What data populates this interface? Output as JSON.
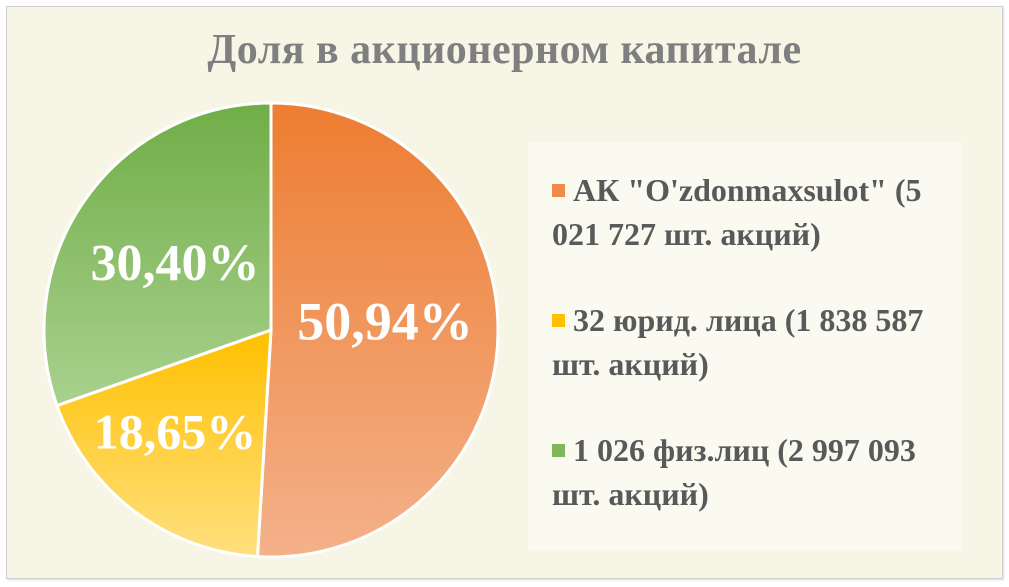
{
  "chart_data": {
    "type": "pie",
    "title": "Доля в акционерном капитале",
    "slices": [
      {
        "label": "АК \"O'zdonmaxsulot\" (5 021 727 шт. акций)",
        "value": 50.94,
        "value_label": "50,94%",
        "color": "#ef8a4a"
      },
      {
        "label": "32 юрид. лица (1 838 587 шт. акций)",
        "value": 18.65,
        "value_label": "18,65%",
        "color": "#ffc000"
      },
      {
        "label": "1 026 физ.лиц (2 997 093 шт. акций)",
        "value": 30.4,
        "value_label": "30,40%",
        "color": "#7fb85a"
      }
    ],
    "legend_position": "right"
  }
}
